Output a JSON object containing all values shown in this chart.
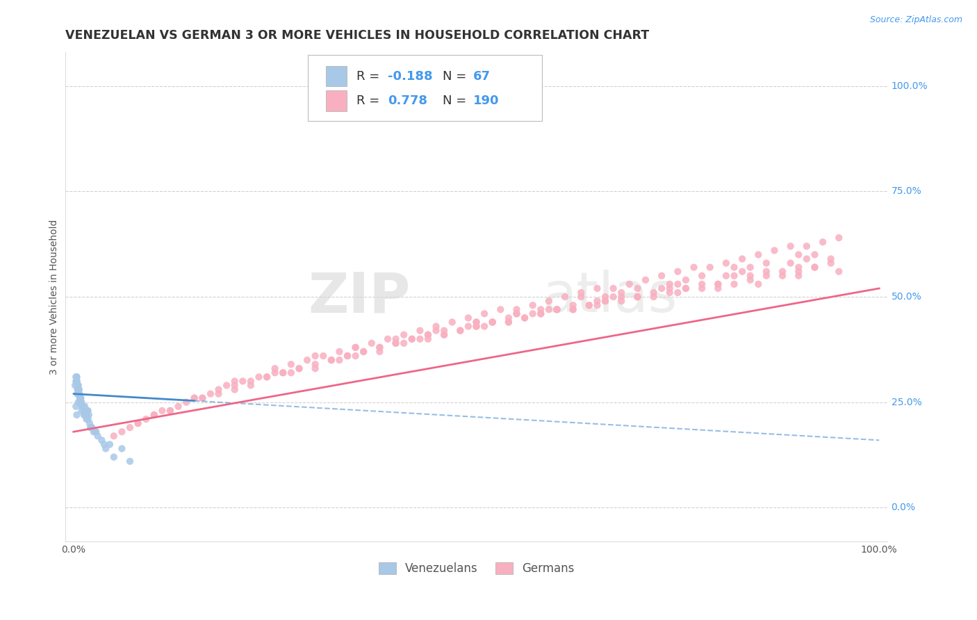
{
  "title": "VENEZUELAN VS GERMAN 3 OR MORE VEHICLES IN HOUSEHOLD CORRELATION CHART",
  "source_text": "Source: ZipAtlas.com",
  "ylabel": "3 or more Vehicles in Household",
  "xlim": [
    -1.0,
    101.0
  ],
  "ylim": [
    -8.0,
    108.0
  ],
  "xtick_positions": [
    0.0,
    100.0
  ],
  "xtick_labels": [
    "0.0%",
    "100.0%"
  ],
  "ytick_positions": [
    0.0,
    25.0,
    50.0,
    75.0,
    100.0
  ],
  "ytick_labels": [
    "0.0%",
    "25.0%",
    "50.0%",
    "75.0%",
    "100.0%"
  ],
  "watermark_zip": "ZIP",
  "watermark_atlas": "atlas",
  "R_venezuelan": -0.188,
  "N_venezuelan": 67,
  "R_german": 0.778,
  "N_german": 190,
  "scatter_color_venezuelan": "#a8c8e8",
  "scatter_color_german": "#f8b0c0",
  "line_color_venezuelan": "#4488cc",
  "line_color_german": "#ee6688",
  "legend_label_venezuelan": "Venezuelans",
  "legend_label_german": "Germans",
  "background_color": "#ffffff",
  "grid_color": "#cccccc",
  "title_color": "#333333",
  "label_color": "#555555",
  "blue_text_color": "#4499ee",
  "title_fontsize": 12.5,
  "label_fontsize": 10,
  "tick_fontsize": 10,
  "venezuelan_x": [
    0.3,
    0.5,
    0.4,
    0.8,
    0.6,
    0.2,
    1.0,
    0.7,
    1.2,
    0.4,
    0.9,
    0.5,
    1.5,
    0.3,
    0.6,
    1.8,
    0.8,
    1.1,
    0.4,
    2.0,
    0.7,
    1.3,
    0.5,
    0.9,
    1.6,
    0.6,
    1.4,
    0.3,
    2.5,
    0.8,
    1.0,
    0.4,
    1.7,
    0.6,
    2.2,
    0.5,
    1.9,
    0.7,
    3.0,
    1.2,
    0.4,
    2.8,
    0.6,
    1.5,
    0.8,
    3.5,
    1.3,
    0.5,
    2.3,
    0.9,
    4.0,
    1.6,
    0.4,
    2.7,
    1.1,
    0.7,
    3.8,
    1.4,
    5.0,
    0.6,
    2.1,
    1.8,
    6.0,
    0.5,
    4.5,
    1.2,
    7.0
  ],
  "venezuelan_y": [
    24,
    27,
    22,
    26,
    25,
    29,
    23,
    28,
    24,
    31,
    26,
    27,
    22,
    30,
    28,
    21,
    25,
    24,
    30,
    20,
    27,
    23,
    28,
    26,
    22,
    29,
    24,
    31,
    18,
    26,
    25,
    30,
    23,
    28,
    19,
    29,
    22,
    27,
    17,
    24,
    31,
    18,
    28,
    23,
    26,
    16,
    22,
    29,
    19,
    25,
    14,
    21,
    30,
    18,
    24,
    27,
    15,
    22,
    12,
    28,
    19,
    23,
    14,
    27,
    15,
    24,
    11
  ],
  "german_x": [
    6,
    8,
    10,
    12,
    14,
    16,
    18,
    20,
    22,
    24,
    26,
    28,
    30,
    32,
    34,
    36,
    38,
    40,
    42,
    44,
    46,
    48,
    50,
    52,
    54,
    56,
    58,
    60,
    62,
    64,
    66,
    68,
    70,
    72,
    74,
    76,
    78,
    80,
    82,
    84,
    86,
    88,
    90,
    92,
    94,
    7,
    9,
    11,
    13,
    15,
    17,
    19,
    21,
    23,
    25,
    27,
    29,
    31,
    33,
    35,
    37,
    39,
    41,
    43,
    45,
    47,
    49,
    51,
    53,
    55,
    57,
    59,
    61,
    63,
    65,
    67,
    69,
    71,
    73,
    75,
    77,
    79,
    81,
    83,
    85,
    87,
    89,
    91,
    93,
    95,
    5,
    10,
    15,
    20,
    25,
    30,
    35,
    40,
    45,
    50,
    55,
    60,
    65,
    70,
    75,
    80,
    85,
    90,
    95,
    8,
    16,
    24,
    32,
    40,
    48,
    56,
    64,
    72,
    80,
    88,
    12,
    20,
    28,
    36,
    44,
    52,
    60,
    68,
    76,
    84,
    92,
    18,
    26,
    34,
    42,
    50,
    58,
    66,
    74,
    82,
    90,
    22,
    30,
    38,
    46,
    54,
    62,
    70,
    78,
    86,
    94,
    27,
    35,
    43,
    51,
    59,
    67,
    75,
    83,
    91,
    33,
    41,
    49,
    57,
    65,
    73,
    81,
    89,
    38,
    46,
    54,
    62,
    70,
    78,
    86,
    44,
    52,
    60,
    68,
    76,
    84,
    92,
    50,
    58,
    66,
    74,
    82,
    90,
    55,
    63
  ],
  "german_y": [
    18,
    20,
    22,
    23,
    25,
    26,
    28,
    29,
    30,
    31,
    32,
    33,
    34,
    35,
    36,
    37,
    38,
    39,
    40,
    40,
    41,
    42,
    43,
    44,
    44,
    45,
    46,
    47,
    47,
    48,
    49,
    49,
    50,
    50,
    51,
    52,
    52,
    53,
    53,
    54,
    55,
    55,
    56,
    57,
    58,
    19,
    21,
    23,
    24,
    26,
    27,
    29,
    30,
    31,
    32,
    34,
    35,
    36,
    37,
    38,
    39,
    40,
    41,
    42,
    43,
    44,
    45,
    46,
    47,
    47,
    48,
    49,
    50,
    51,
    52,
    52,
    53,
    54,
    55,
    56,
    57,
    57,
    58,
    59,
    60,
    61,
    62,
    62,
    63,
    64,
    17,
    22,
    26,
    30,
    33,
    36,
    38,
    40,
    42,
    44,
    46,
    47,
    48,
    50,
    51,
    52,
    53,
    55,
    56,
    20,
    26,
    31,
    35,
    39,
    42,
    45,
    48,
    51,
    53,
    56,
    23,
    28,
    33,
    37,
    41,
    44,
    47,
    50,
    52,
    55,
    57,
    27,
    32,
    36,
    40,
    43,
    46,
    49,
    52,
    55,
    57,
    29,
    33,
    37,
    41,
    44,
    47,
    50,
    53,
    56,
    59,
    32,
    36,
    40,
    43,
    47,
    50,
    53,
    56,
    59,
    35,
    39,
    43,
    46,
    49,
    52,
    55,
    58,
    38,
    42,
    45,
    48,
    52,
    55,
    58,
    41,
    44,
    47,
    51,
    54,
    57,
    60,
    44,
    47,
    50,
    53,
    57,
    60,
    46,
    50
  ],
  "ven_trend_x_start": 0,
  "ven_trend_x_end": 100,
  "ven_trend_y_start": 27,
  "ven_trend_y_end": 16,
  "ven_solid_x_end": 15,
  "ger_trend_x_start": 0,
  "ger_trend_x_end": 100,
  "ger_trend_y_start": 18,
  "ger_trend_y_end": 52
}
